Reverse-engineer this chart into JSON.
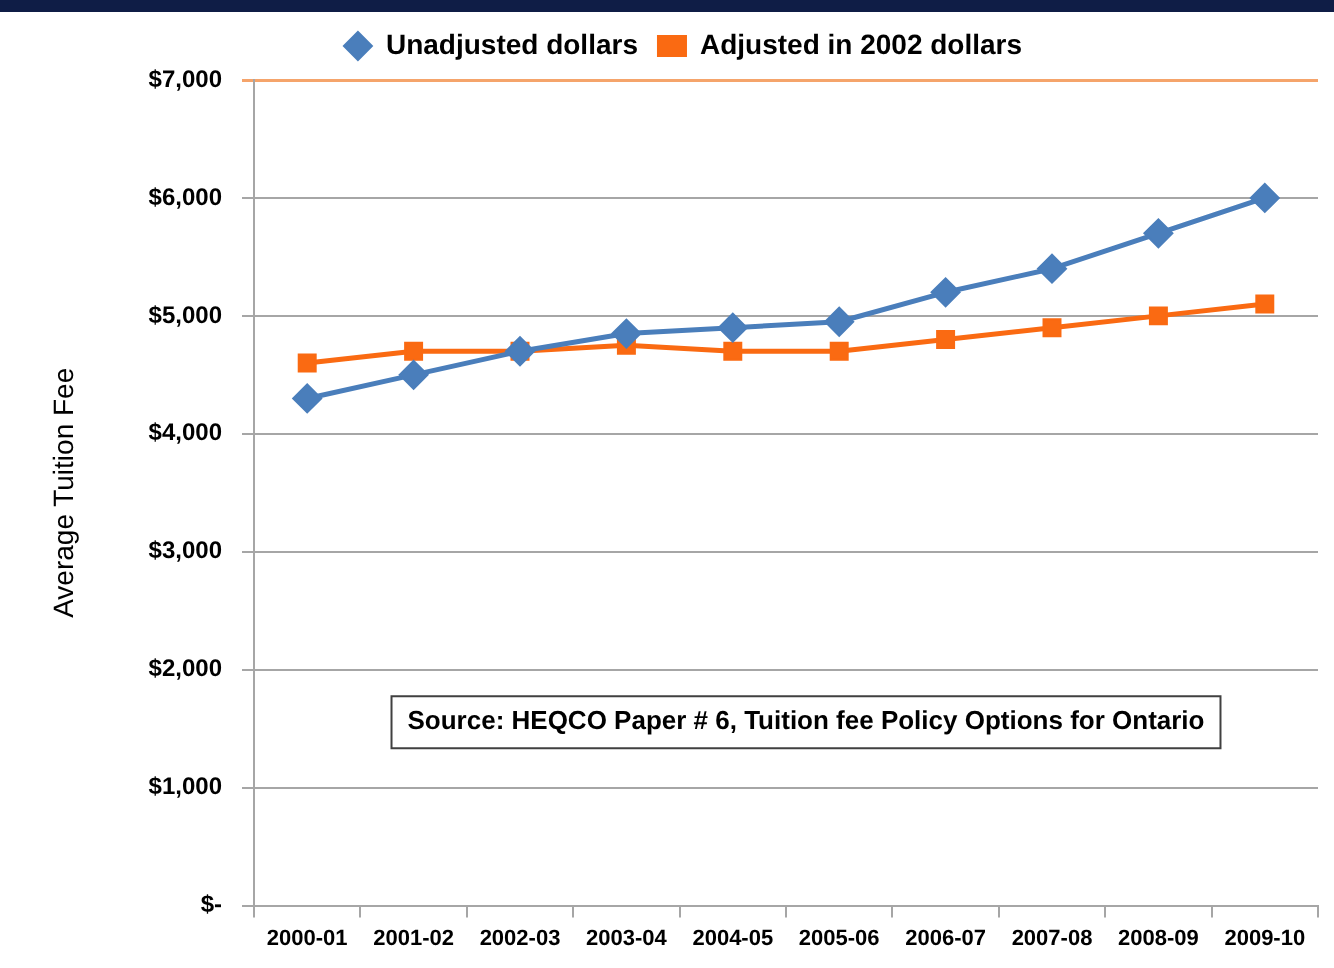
{
  "chart_data": {
    "type": "line",
    "ylabel": "Average Tuition Fee",
    "annotations": [
      "Source: HEQCO Paper # 6, Tuition fee Policy Options for Ontario"
    ],
    "categories": [
      "2000-01",
      "2001-02",
      "2002-03",
      "2003-04",
      "2004-05",
      "2005-06",
      "2006-07",
      "2007-08",
      "2008-09",
      "2009-10"
    ],
    "series": [
      {
        "name": "Unadjusted dollars",
        "color": "#4a7ebb",
        "marker": "diamond",
        "values": [
          4300,
          4500,
          4700,
          4850,
          4900,
          4950,
          5200,
          5400,
          5700,
          6000
        ]
      },
      {
        "name": "Adjusted in 2002 dollars",
        "color": "#fa6a12",
        "marker": "square",
        "values": [
          4600,
          4700,
          4700,
          4750,
          4700,
          4700,
          4800,
          4900,
          5000,
          5100
        ]
      }
    ],
    "ylim": [
      0,
      7000
    ],
    "yticks": [
      {
        "value": 0,
        "label": "$-"
      },
      {
        "value": 1000,
        "label": "$1,000"
      },
      {
        "value": 2000,
        "label": "$2,000"
      },
      {
        "value": 3000,
        "label": "$3,000"
      },
      {
        "value": 4000,
        "label": "$4,000"
      },
      {
        "value": 5000,
        "label": "$5,000"
      },
      {
        "value": 6000,
        "label": "$6,000"
      },
      {
        "value": 7000,
        "label": "$7,000"
      }
    ],
    "grid": "y",
    "legend": "top",
    "line_style": "solid"
  }
}
